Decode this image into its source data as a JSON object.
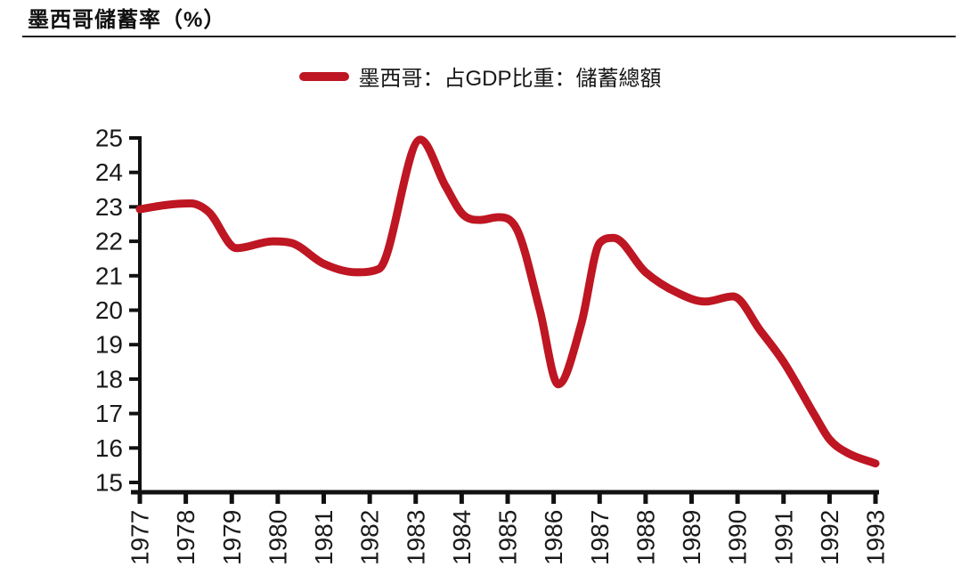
{
  "page": {
    "title": "墨西哥儲蓄率（%）",
    "legend": {
      "label": "墨西哥：占GDP比重：儲蓄總額",
      "marker_color": "#BE1622"
    }
  },
  "chart_data": {
    "type": "line",
    "title": "墨西哥儲蓄率（%）",
    "xlabel": "",
    "ylabel": "",
    "xlim": [
      1977,
      1993
    ],
    "ylim": [
      15,
      25
    ],
    "grid": false,
    "legend_position": "top-center",
    "axis_color": "#111111",
    "tick_label_color": "#1a1a1a",
    "x_ticks": [
      1977,
      1978,
      1979,
      1980,
      1981,
      1982,
      1983,
      1984,
      1985,
      1986,
      1987,
      1988,
      1989,
      1990,
      1991,
      1992,
      1993
    ],
    "y_ticks": [
      15,
      16,
      17,
      18,
      19,
      20,
      21,
      22,
      23,
      24,
      25
    ],
    "series": [
      {
        "name": "墨西哥：占GDP比重：儲蓄總額",
        "color": "#BE1622",
        "stroke_width": 9,
        "points": [
          [
            1977.0,
            22.93
          ],
          [
            1977.6,
            23.06
          ],
          [
            1978.1,
            23.1
          ],
          [
            1978.5,
            22.85
          ],
          [
            1979.1,
            21.8
          ],
          [
            1979.9,
            22.0
          ],
          [
            1980.3,
            21.95
          ],
          [
            1981.0,
            21.35
          ],
          [
            1981.7,
            21.1
          ],
          [
            1982.2,
            21.2
          ],
          [
            1983.1,
            24.95
          ],
          [
            1983.65,
            23.6
          ],
          [
            1984.05,
            22.75
          ],
          [
            1984.4,
            22.62
          ],
          [
            1984.8,
            22.7
          ],
          [
            1985.2,
            22.35
          ],
          [
            1985.7,
            20.0
          ],
          [
            1986.1,
            17.85
          ],
          [
            1986.6,
            19.6
          ],
          [
            1987.0,
            21.95
          ],
          [
            1987.3,
            22.1
          ],
          [
            1988.0,
            21.1
          ],
          [
            1988.7,
            20.5
          ],
          [
            1989.3,
            20.25
          ],
          [
            1989.9,
            20.4
          ],
          [
            1990.5,
            19.4
          ],
          [
            1991.0,
            18.5
          ],
          [
            1991.7,
            16.9
          ],
          [
            1992.0,
            16.25
          ],
          [
            1992.4,
            15.85
          ],
          [
            1993.0,
            15.55
          ]
        ],
        "annual_values_est": {
          "1977": 22.9,
          "1978": 23.1,
          "1979": 21.9,
          "1980": 22.0,
          "1981": 21.4,
          "1982": 21.2,
          "1983": 24.9,
          "1984": 22.7,
          "1985": 22.5,
          "1986": 17.9,
          "1987": 22.0,
          "1988": 21.1,
          "1989": 20.3,
          "1990": 20.4,
          "1991": 18.5,
          "1992": 16.3,
          "1993": 15.6
        }
      }
    ]
  }
}
